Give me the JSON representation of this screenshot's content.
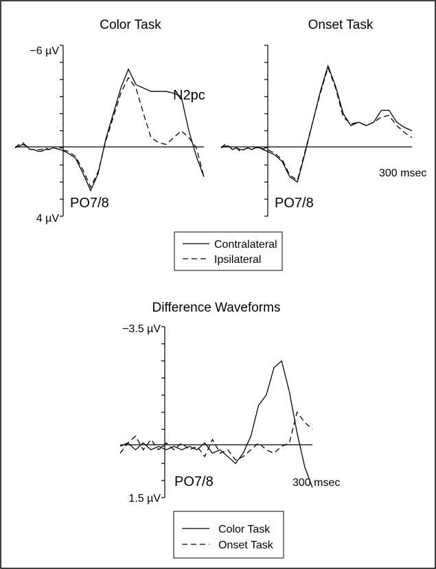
{
  "chart_data": [
    {
      "type": "line",
      "title": "Color Task",
      "ylim": [
        4,
        -6
      ],
      "y_top_label": "−6 µV",
      "y_bottom_label": "4 µV",
      "x_end_label": "",
      "electrode_label": "PO7/8",
      "annotation": "N2pc",
      "x_unit": "msec",
      "xlim": [
        -100,
        400
      ],
      "series": [
        {
          "name": "Contralateral",
          "style": "solid",
          "x": [
            -100,
            -90,
            -80,
            -70,
            -60,
            -50,
            -40,
            -30,
            -20,
            -10,
            0,
            20,
            40,
            60,
            80,
            100,
            120,
            140,
            160,
            180,
            200,
            220,
            240,
            260,
            280,
            300,
            320,
            340,
            360,
            380,
            400
          ],
          "y": [
            0,
            -0.1,
            -0.2,
            -0.1,
            0.1,
            0.1,
            0.2,
            0.2,
            0.1,
            0.1,
            0,
            0.1,
            0.3,
            0.6,
            1.5,
            2.5,
            1.5,
            -0.5,
            -2,
            -3.5,
            -4.6,
            -3.7,
            -3.5,
            -3.3,
            -3.3,
            -3.3,
            -3.2,
            -3,
            -1,
            0.5,
            1.7
          ]
        },
        {
          "name": "Ipsilateral",
          "style": "dashed",
          "x": [
            -100,
            -90,
            -80,
            -70,
            -60,
            -50,
            -40,
            -30,
            -20,
            -10,
            0,
            20,
            40,
            60,
            80,
            100,
            120,
            140,
            160,
            180,
            200,
            220,
            240,
            260,
            280,
            300,
            320,
            340,
            360,
            380,
            400
          ],
          "y": [
            0,
            -0.2,
            -0.3,
            -0.1,
            0.1,
            0.1,
            0.1,
            0.1,
            0,
            0.1,
            0,
            0.1,
            0.2,
            0.5,
            1.3,
            2.3,
            1.4,
            -0.4,
            -1.8,
            -3.2,
            -4.1,
            -3.5,
            -2,
            -0.6,
            -0.3,
            -0.2,
            -0.6,
            -1,
            -0.6,
            0,
            1.7
          ]
        }
      ]
    },
    {
      "type": "line",
      "title": "Onset Task",
      "ylim": [
        4,
        -6
      ],
      "y_top_label": "",
      "y_bottom_label": "",
      "x_end_label": "300 msec",
      "electrode_label": "PO7/8",
      "annotation": "",
      "x_unit": "msec",
      "xlim": [
        -100,
        400
      ],
      "series": [
        {
          "name": "Contralateral",
          "style": "solid",
          "x": [
            -100,
            -90,
            -80,
            -70,
            -60,
            -50,
            -40,
            -30,
            -20,
            -10,
            0,
            20,
            40,
            60,
            80,
            100,
            120,
            140,
            160,
            180,
            200,
            220,
            240,
            260,
            280,
            300,
            320,
            340,
            360,
            380,
            400
          ],
          "y": [
            0,
            -0.1,
            -0.1,
            0.1,
            0,
            0.1,
            0.1,
            0,
            0.1,
            0,
            0,
            0.2,
            0.4,
            0.8,
            1.7,
            2,
            0.3,
            -1.5,
            -3.3,
            -4.8,
            -3.6,
            -2,
            -1.3,
            -1.5,
            -1.3,
            -1.5,
            -2.2,
            -2.2,
            -1.5,
            -1.2,
            -1
          ]
        },
        {
          "name": "Ipsilateral",
          "style": "dashed",
          "x": [
            -100,
            -90,
            -80,
            -70,
            -60,
            -50,
            -40,
            -30,
            -20,
            -10,
            0,
            20,
            40,
            60,
            80,
            100,
            120,
            140,
            160,
            180,
            200,
            220,
            240,
            260,
            280,
            300,
            320,
            340,
            360,
            380,
            400
          ],
          "y": [
            0,
            -0.2,
            -0.1,
            0.1,
            0,
            0.2,
            0.1,
            0,
            0.1,
            0,
            0,
            0.1,
            0.3,
            0.7,
            1.6,
            1.9,
            0.2,
            -1.5,
            -3.2,
            -4.7,
            -3.5,
            -1.8,
            -1.4,
            -1.5,
            -1.3,
            -1.5,
            -1.8,
            -1.9,
            -1.3,
            -0.9,
            -0.6
          ]
        }
      ]
    },
    {
      "type": "line",
      "title": "Difference Waveforms",
      "ylim": [
        1.5,
        -3.5
      ],
      "y_top_label": "−3.5 µV",
      "y_bottom_label": "1.5 µV",
      "x_end_label": "300 msec",
      "electrode_label": "PO7/8",
      "annotation": "",
      "x_unit": "msec",
      "xlim": [
        -100,
        400
      ],
      "series": [
        {
          "name": "Color Task",
          "style": "solid",
          "x": [
            -100,
            -80,
            -60,
            -40,
            -20,
            0,
            20,
            40,
            60,
            80,
            100,
            120,
            140,
            160,
            180,
            200,
            220,
            240,
            260,
            280,
            300,
            320,
            340,
            360,
            380,
            400
          ],
          "y": [
            0,
            -0.1,
            0.1,
            -0.1,
            0.1,
            0,
            0.1,
            0,
            0.1,
            0,
            0.1,
            -0.1,
            0.2,
            0.1,
            0.3,
            0.5,
            0.2,
            -0.3,
            -1.2,
            -1.5,
            -2.3,
            -2.5,
            -1.6,
            -0.4,
            0.6,
            1.2
          ]
        },
        {
          "name": "Onset Task",
          "style": "dashed",
          "x": [
            -100,
            -80,
            -60,
            -40,
            -20,
            0,
            20,
            40,
            60,
            80,
            100,
            120,
            140,
            160,
            180,
            200,
            220,
            240,
            260,
            280,
            300,
            320,
            340,
            360,
            380,
            400
          ],
          "y": [
            0.2,
            -0.1,
            -0.3,
            0.1,
            -0.2,
            0.1,
            -0.1,
            0.1,
            -0.1,
            0.1,
            0,
            0.3,
            -0.2,
            0.2,
            0.1,
            0.4,
            0.3,
            0.1,
            -0.1,
            0.1,
            0.2,
            0,
            -0.1,
            -1,
            -0.7,
            -0.5
          ]
        }
      ]
    }
  ],
  "legend_top": {
    "contralateral": "Contralateral",
    "ipsilateral": "Ipsilateral"
  },
  "legend_bottom": {
    "color_task": "Color Task",
    "onset_task": "Onset Task"
  }
}
